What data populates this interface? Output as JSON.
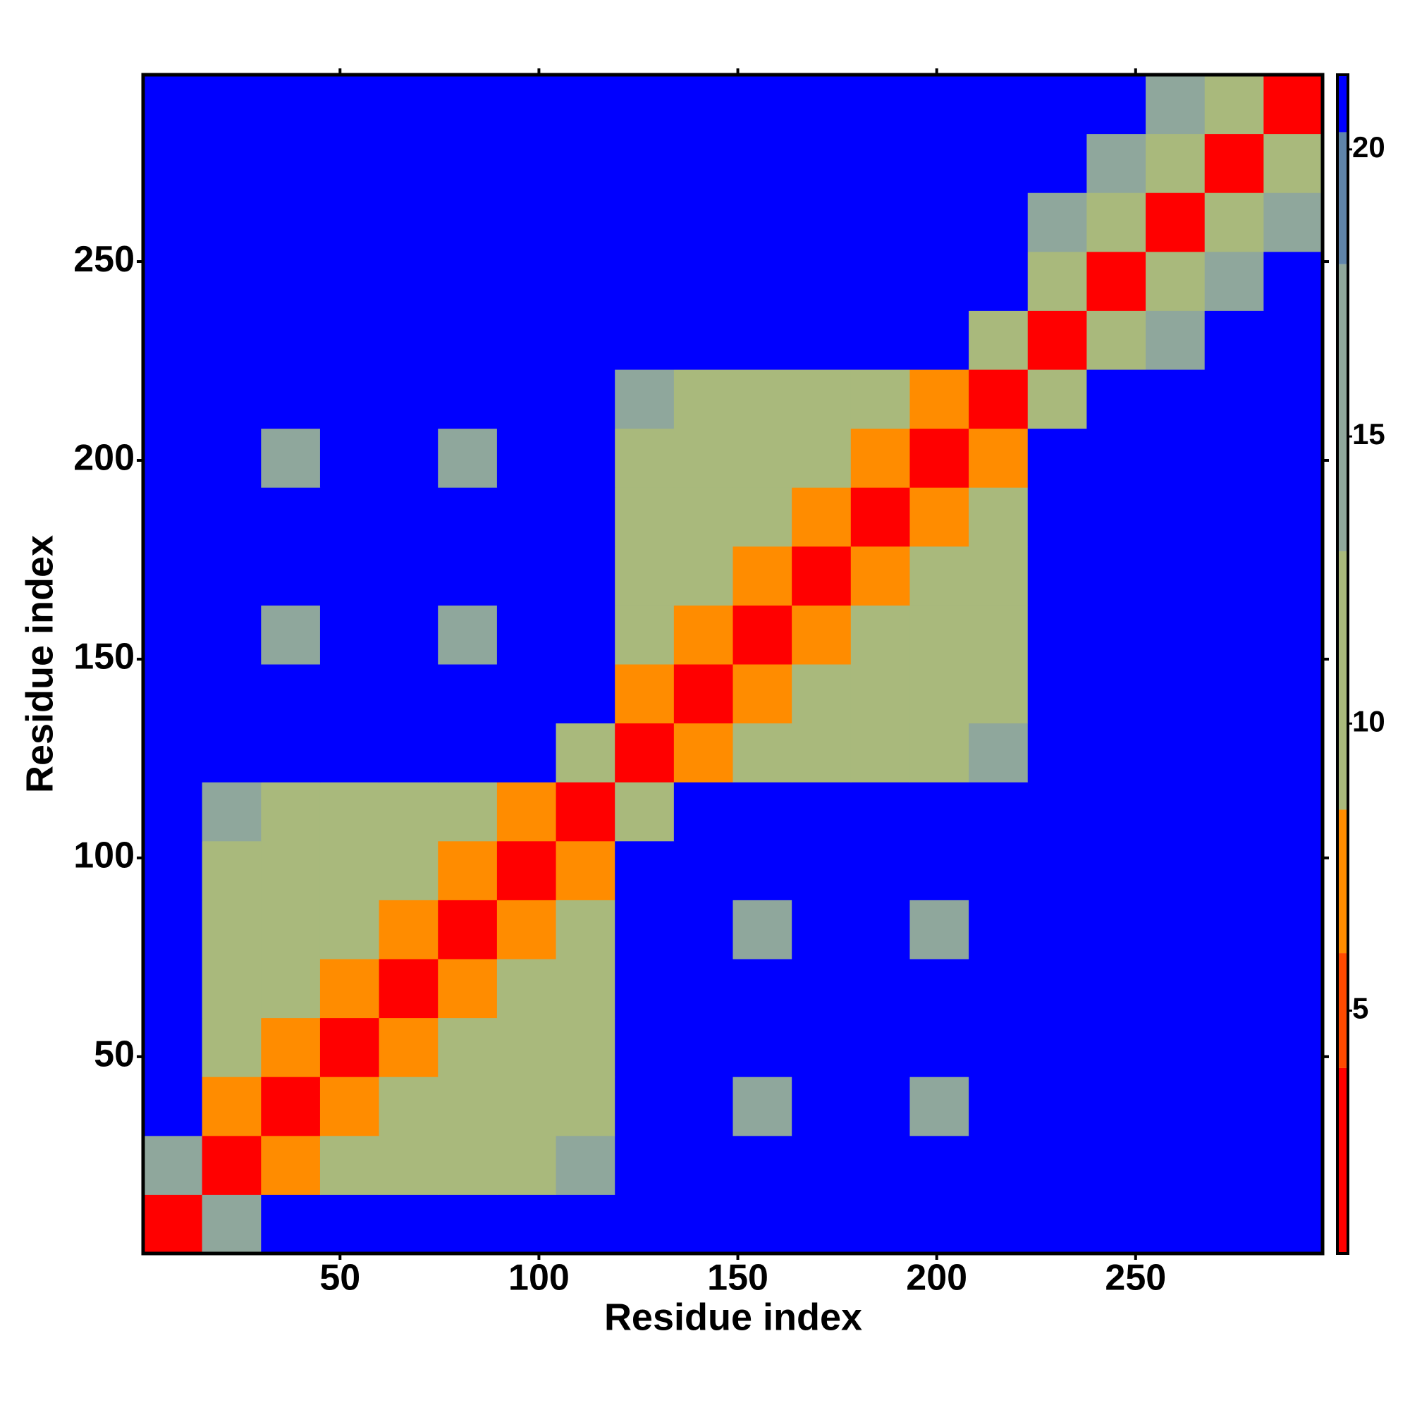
{
  "chart_data": {
    "type": "heatmap",
    "xlabel": "Residue index",
    "ylabel": "Residue index",
    "xlim": [
      0.5,
      297
    ],
    "ylim": [
      0.5,
      297
    ],
    "xticks": [
      50,
      100,
      150,
      200,
      250
    ],
    "yticks": [
      50,
      100,
      150,
      200,
      250
    ],
    "matrix": [
      [
        3,
        14,
        21,
        21,
        21,
        21,
        21,
        21,
        21,
        21,
        21,
        21,
        21,
        21,
        21,
        21,
        21,
        21,
        21,
        21
      ],
      [
        14,
        3,
        8,
        12,
        12,
        12,
        12,
        14,
        21,
        21,
        21,
        21,
        21,
        21,
        21,
        21,
        21,
        21,
        21,
        21
      ],
      [
        21,
        8,
        3,
        8,
        12,
        12,
        12,
        12,
        21,
        21,
        17,
        21,
        21,
        17,
        21,
        21,
        21,
        21,
        21,
        21
      ],
      [
        21,
        12,
        8,
        3,
        8,
        12,
        12,
        12,
        21,
        21,
        21,
        21,
        21,
        21,
        21,
        21,
        21,
        21,
        21,
        21
      ],
      [
        21,
        12,
        12,
        8,
        3,
        8,
        12,
        12,
        21,
        21,
        21,
        21,
        21,
        21,
        21,
        21,
        21,
        21,
        21,
        21
      ],
      [
        21,
        12,
        12,
        12,
        8,
        3,
        8,
        12,
        21,
        21,
        17,
        21,
        21,
        17,
        21,
        21,
        21,
        21,
        21,
        21
      ],
      [
        21,
        12,
        12,
        12,
        12,
        8,
        3,
        8,
        21,
        21,
        21,
        21,
        21,
        21,
        21,
        21,
        21,
        21,
        21,
        21
      ],
      [
        21,
        14,
        12,
        12,
        12,
        12,
        8,
        3,
        10,
        21,
        21,
        21,
        21,
        21,
        21,
        21,
        21,
        21,
        21,
        21
      ],
      [
        21,
        21,
        21,
        21,
        21,
        21,
        21,
        10,
        3,
        8,
        12,
        12,
        12,
        12,
        14,
        21,
        21,
        21,
        21,
        21
      ],
      [
        21,
        21,
        21,
        21,
        21,
        21,
        21,
        21,
        8,
        3,
        8,
        12,
        12,
        12,
        12,
        21,
        21,
        21,
        21,
        21
      ],
      [
        21,
        21,
        17,
        21,
        21,
        17,
        21,
        21,
        12,
        8,
        3,
        8,
        12,
        12,
        12,
        21,
        21,
        21,
        21,
        21
      ],
      [
        21,
        21,
        21,
        21,
        21,
        21,
        21,
        21,
        12,
        12,
        8,
        3,
        8,
        12,
        12,
        21,
        21,
        21,
        21,
        21
      ],
      [
        21,
        21,
        21,
        21,
        21,
        21,
        21,
        21,
        12,
        12,
        12,
        8,
        3,
        8,
        12,
        21,
        21,
        21,
        21,
        21
      ],
      [
        21,
        21,
        17,
        21,
        21,
        17,
        21,
        21,
        12,
        12,
        12,
        12,
        8,
        3,
        8,
        21,
        21,
        21,
        21,
        21
      ],
      [
        21,
        21,
        21,
        21,
        21,
        21,
        21,
        21,
        14,
        12,
        12,
        12,
        12,
        8,
        3,
        12,
        21,
        21,
        21,
        21
      ],
      [
        21,
        21,
        21,
        21,
        21,
        21,
        21,
        21,
        21,
        21,
        21,
        21,
        21,
        21,
        12,
        3,
        10,
        16,
        21,
        21
      ],
      [
        21,
        21,
        21,
        21,
        21,
        21,
        21,
        21,
        21,
        21,
        21,
        21,
        21,
        21,
        21,
        10,
        3,
        10,
        16,
        21
      ],
      [
        21,
        21,
        21,
        21,
        21,
        21,
        21,
        21,
        21,
        21,
        21,
        21,
        21,
        21,
        21,
        16,
        10,
        3,
        10,
        16
      ],
      [
        21,
        21,
        21,
        21,
        21,
        21,
        21,
        21,
        21,
        21,
        21,
        21,
        21,
        21,
        21,
        21,
        16,
        10,
        3,
        10
      ],
      [
        21,
        21,
        21,
        21,
        21,
        21,
        21,
        21,
        21,
        21,
        21,
        21,
        21,
        21,
        21,
        21,
        21,
        16,
        10,
        3
      ]
    ],
    "colorbar": {
      "lim": [
        0.77,
        21.3
      ],
      "ticks": [
        5,
        10,
        15,
        20
      ],
      "bands": [
        {
          "from": 0.77,
          "to": 4,
          "color": "#ff0000"
        },
        {
          "from": 4,
          "to": 6,
          "color": "#ff4a00"
        },
        {
          "from": 6,
          "to": 8.5,
          "color": "#ff8c00"
        },
        {
          "from": 8.5,
          "to": 13,
          "color": "#a9b97c"
        },
        {
          "from": 13,
          "to": 18,
          "color": "#8fa79c"
        },
        {
          "from": 18,
          "to": 20.3,
          "color": "#5f84aa"
        },
        {
          "from": 20.3,
          "to": 21.3,
          "color": "#0000ff"
        }
      ]
    }
  }
}
